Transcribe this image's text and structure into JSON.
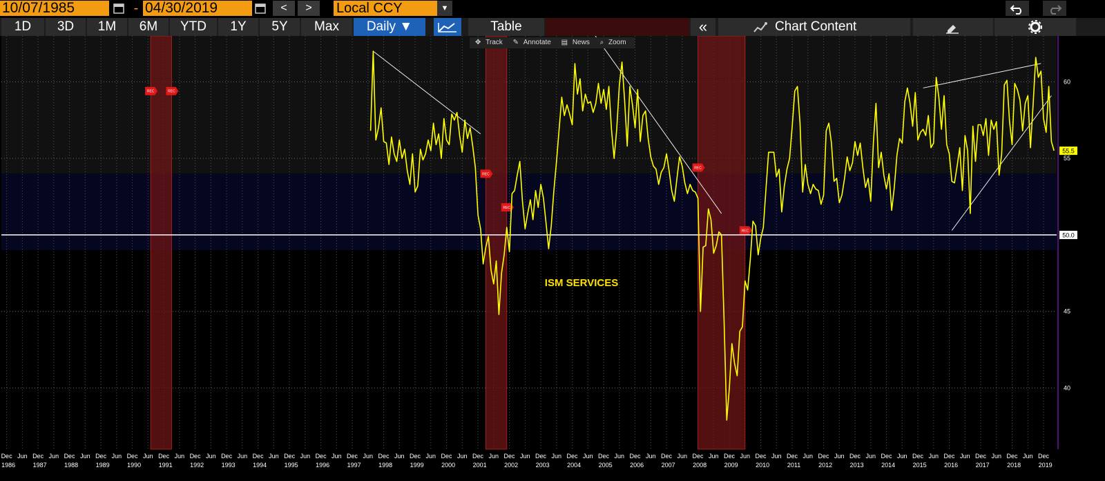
{
  "toolbar": {
    "start_date": "10/07/1985",
    "dash": "-",
    "end_date": "04/30/2019",
    "prev": "<",
    "next": ">",
    "currency": "Local CCY",
    "currency_arrow": "▼"
  },
  "tabs": {
    "periods": [
      "1D",
      "3D",
      "1M",
      "6M",
      "YTD",
      "1Y",
      "5Y",
      "Max"
    ],
    "frequency": "Daily ▼",
    "table": "Table",
    "collapse": "«",
    "chart_content": "Chart Content"
  },
  "chart_tools": {
    "track": "Track",
    "annotate": "Annotate",
    "news": "News",
    "zoom": "Zoom"
  },
  "colors": {
    "background": "#000000",
    "line": "#ffff00",
    "recession": "#8b1a1a",
    "accent": "#f39c12",
    "active_tab": "#1e62b8"
  },
  "chart_data": {
    "type": "line",
    "annotation": "ISM SERVICES",
    "ylim": [
      36,
      63
    ],
    "yticks": [
      "40",
      "45",
      "50",
      "55",
      "60"
    ],
    "reference_line": 50.0,
    "reference_label": "50.0",
    "last_value_label": "55.5",
    "recession_label": "REC",
    "x_range": [
      "1985-10",
      "2019-04"
    ],
    "x_year_labels": [
      "1986",
      "1987",
      "1988",
      "1989",
      "1990",
      "1991",
      "1992",
      "1993",
      "1994",
      "1995",
      "1996",
      "1997",
      "1998",
      "1999",
      "2000",
      "2001",
      "2002",
      "2003",
      "2004",
      "2005",
      "2006",
      "2007",
      "2008",
      "2009",
      "2010",
      "2011",
      "2012",
      "2013",
      "2014",
      "2015",
      "2016",
      "2017",
      "2018",
      "2019"
    ],
    "recessions": [
      {
        "start": "1990-07",
        "end": "1991-03"
      },
      {
        "start": "2001-03",
        "end": "2001-11"
      },
      {
        "start": "2007-12",
        "end": "2009-06"
      }
    ],
    "series": [
      {
        "values": [
          [
            "1997-07",
            56.8
          ],
          [
            "1997-08",
            62.0
          ],
          [
            "1997-09",
            56.2
          ],
          [
            "1997-10",
            57.0
          ],
          [
            "1997-11",
            58.3
          ],
          [
            "1997-12",
            56.1
          ],
          [
            "1998-01",
            56.0
          ],
          [
            "1998-02",
            54.6
          ],
          [
            "1998-03",
            56.4
          ],
          [
            "1998-04",
            55.3
          ],
          [
            "1998-05",
            54.8
          ],
          [
            "1998-06",
            56.2
          ],
          [
            "1998-07",
            55.0
          ],
          [
            "1998-08",
            55.6
          ],
          [
            "1998-09",
            54.2
          ],
          [
            "1998-10",
            53.3
          ],
          [
            "1998-11",
            55.3
          ],
          [
            "1998-12",
            52.8
          ],
          [
            "1999-01",
            53.2
          ],
          [
            "1999-02",
            55.6
          ],
          [
            "1999-03",
            54.9
          ],
          [
            "1999-04",
            55.3
          ],
          [
            "1999-05",
            56.2
          ],
          [
            "1999-06",
            55.5
          ],
          [
            "1999-07",
            57.3
          ],
          [
            "1999-08",
            55.9
          ],
          [
            "1999-09",
            56.6
          ],
          [
            "1999-10",
            55.0
          ],
          [
            "1999-11",
            57.6
          ],
          [
            "1999-12",
            56.2
          ],
          [
            "2000-01",
            55.9
          ],
          [
            "2000-02",
            57.9
          ],
          [
            "2000-03",
            57.5
          ],
          [
            "2000-04",
            58.0
          ],
          [
            "2000-05",
            56.5
          ],
          [
            "2000-06",
            55.4
          ],
          [
            "2000-07",
            57.5
          ],
          [
            "2000-08",
            56.3
          ],
          [
            "2000-09",
            57.0
          ],
          [
            "2000-10",
            55.8
          ],
          [
            "2000-11",
            54.4
          ],
          [
            "2000-12",
            51.3
          ],
          [
            "2001-01",
            50.4
          ],
          [
            "2001-02",
            48.1
          ],
          [
            "2001-03",
            49.2
          ],
          [
            "2001-04",
            49.9
          ],
          [
            "2001-05",
            47.7
          ],
          [
            "2001-06",
            46.8
          ],
          [
            "2001-07",
            48.3
          ],
          [
            "2001-08",
            44.8
          ],
          [
            "2001-09",
            47.5
          ],
          [
            "2001-10",
            48.7
          ],
          [
            "2001-11",
            50.5
          ],
          [
            "2001-12",
            48.9
          ],
          [
            "2002-01",
            52.7
          ],
          [
            "2002-02",
            52.9
          ],
          [
            "2002-03",
            53.9
          ],
          [
            "2002-04",
            54.8
          ],
          [
            "2002-05",
            52.2
          ],
          [
            "2002-06",
            50.4
          ],
          [
            "2002-07",
            51.4
          ],
          [
            "2002-08",
            52.3
          ],
          [
            "2002-09",
            51.0
          ],
          [
            "2002-10",
            52.9
          ],
          [
            "2002-11",
            51.8
          ],
          [
            "2002-12",
            53.3
          ],
          [
            "2003-01",
            52.4
          ],
          [
            "2003-02",
            50.8
          ],
          [
            "2003-03",
            49.1
          ],
          [
            "2003-04",
            50.6
          ],
          [
            "2003-05",
            52.9
          ],
          [
            "2003-06",
            54.8
          ],
          [
            "2003-07",
            56.9
          ],
          [
            "2003-08",
            59.0
          ],
          [
            "2003-09",
            57.8
          ],
          [
            "2003-10",
            58.5
          ],
          [
            "2003-11",
            57.9
          ],
          [
            "2003-12",
            57.2
          ],
          [
            "2004-01",
            61.2
          ],
          [
            "2004-02",
            59.2
          ],
          [
            "2004-03",
            60.2
          ],
          [
            "2004-04",
            58.1
          ],
          [
            "2004-05",
            59.2
          ],
          [
            "2004-06",
            58.6
          ],
          [
            "2004-07",
            58.7
          ],
          [
            "2004-08",
            58.0
          ],
          [
            "2004-09",
            58.6
          ],
          [
            "2004-10",
            59.9
          ],
          [
            "2004-11",
            58.6
          ],
          [
            "2004-12",
            59.5
          ],
          [
            "2005-01",
            58.2
          ],
          [
            "2005-02",
            59.7
          ],
          [
            "2005-03",
            56.9
          ],
          [
            "2005-04",
            55.0
          ],
          [
            "2005-05",
            56.9
          ],
          [
            "2005-06",
            59.8
          ],
          [
            "2005-07",
            61.3
          ],
          [
            "2005-08",
            58.8
          ],
          [
            "2005-09",
            55.8
          ],
          [
            "2005-10",
            59.7
          ],
          [
            "2005-11",
            58.5
          ],
          [
            "2005-12",
            57.0
          ],
          [
            "2006-01",
            59.5
          ],
          [
            "2006-02",
            56.1
          ],
          [
            "2006-03",
            57.8
          ],
          [
            "2006-04",
            58.1
          ],
          [
            "2006-05",
            56.3
          ],
          [
            "2006-06",
            55.1
          ],
          [
            "2006-07",
            54.5
          ],
          [
            "2006-08",
            54.3
          ],
          [
            "2006-09",
            53.3
          ],
          [
            "2006-10",
            54.1
          ],
          [
            "2006-11",
            54.4
          ],
          [
            "2006-12",
            55.3
          ],
          [
            "2007-01",
            54.2
          ],
          [
            "2007-02",
            52.9
          ],
          [
            "2007-03",
            52.2
          ],
          [
            "2007-04",
            53.7
          ],
          [
            "2007-05",
            55.1
          ],
          [
            "2007-06",
            54.5
          ],
          [
            "2007-07",
            53.4
          ],
          [
            "2007-08",
            52.7
          ],
          [
            "2007-09",
            53.3
          ],
          [
            "2007-10",
            52.9
          ],
          [
            "2007-11",
            52.8
          ],
          [
            "2007-12",
            52.4
          ],
          [
            "2008-01",
            45.0
          ],
          [
            "2008-02",
            49.2
          ],
          [
            "2008-03",
            49.3
          ],
          [
            "2008-04",
            51.7
          ],
          [
            "2008-05",
            51.0
          ],
          [
            "2008-06",
            48.8
          ],
          [
            "2008-07",
            49.3
          ],
          [
            "2008-08",
            50.2
          ],
          [
            "2008-09",
            50.0
          ],
          [
            "2008-10",
            44.3
          ],
          [
            "2008-11",
            37.9
          ],
          [
            "2008-12",
            40.0
          ],
          [
            "2009-01",
            42.9
          ],
          [
            "2009-02",
            41.6
          ],
          [
            "2009-03",
            40.8
          ],
          [
            "2009-04",
            43.7
          ],
          [
            "2009-05",
            44.0
          ],
          [
            "2009-06",
            47.0
          ],
          [
            "2009-07",
            46.4
          ],
          [
            "2009-08",
            48.4
          ],
          [
            "2009-09",
            50.9
          ],
          [
            "2009-10",
            50.6
          ],
          [
            "2009-11",
            48.7
          ],
          [
            "2009-12",
            49.8
          ],
          [
            "2010-01",
            50.5
          ],
          [
            "2010-02",
            53.0
          ],
          [
            "2010-03",
            55.4
          ],
          [
            "2010-04",
            55.4
          ],
          [
            "2010-05",
            55.4
          ],
          [
            "2010-06",
            53.8
          ],
          [
            "2010-07",
            54.3
          ],
          [
            "2010-08",
            51.5
          ],
          [
            "2010-09",
            53.2
          ],
          [
            "2010-10",
            54.3
          ],
          [
            "2010-11",
            55.0
          ],
          [
            "2010-12",
            57.1
          ],
          [
            "2011-01",
            59.4
          ],
          [
            "2011-02",
            59.7
          ],
          [
            "2011-03",
            57.3
          ],
          [
            "2011-04",
            52.8
          ],
          [
            "2011-05",
            54.6
          ],
          [
            "2011-06",
            53.3
          ],
          [
            "2011-07",
            52.7
          ],
          [
            "2011-08",
            53.3
          ],
          [
            "2011-09",
            53.0
          ],
          [
            "2011-10",
            52.9
          ],
          [
            "2011-11",
            52.0
          ],
          [
            "2011-12",
            52.6
          ],
          [
            "2012-01",
            56.8
          ],
          [
            "2012-02",
            57.3
          ],
          [
            "2012-03",
            56.0
          ],
          [
            "2012-04",
            53.5
          ],
          [
            "2012-05",
            53.7
          ],
          [
            "2012-06",
            52.1
          ],
          [
            "2012-07",
            52.6
          ],
          [
            "2012-08",
            53.7
          ],
          [
            "2012-09",
            55.1
          ],
          [
            "2012-10",
            54.2
          ],
          [
            "2012-11",
            54.7
          ],
          [
            "2012-12",
            56.1
          ],
          [
            "2013-01",
            55.2
          ],
          [
            "2013-02",
            56.0
          ],
          [
            "2013-03",
            54.4
          ],
          [
            "2013-04",
            53.1
          ],
          [
            "2013-05",
            53.7
          ],
          [
            "2013-06",
            52.2
          ],
          [
            "2013-07",
            56.0
          ],
          [
            "2013-08",
            58.6
          ],
          [
            "2013-09",
            54.4
          ],
          [
            "2013-10",
            55.4
          ],
          [
            "2013-11",
            53.9
          ],
          [
            "2013-12",
            53.0
          ],
          [
            "2014-01",
            54.0
          ],
          [
            "2014-02",
            51.6
          ],
          [
            "2014-03",
            53.1
          ],
          [
            "2014-04",
            55.2
          ],
          [
            "2014-05",
            56.3
          ],
          [
            "2014-06",
            56.0
          ],
          [
            "2014-07",
            58.7
          ],
          [
            "2014-08",
            59.6
          ],
          [
            "2014-09",
            58.6
          ],
          [
            "2014-10",
            57.1
          ],
          [
            "2014-11",
            59.3
          ],
          [
            "2014-12",
            56.2
          ],
          [
            "2015-01",
            56.7
          ],
          [
            "2015-02",
            56.9
          ],
          [
            "2015-03",
            56.5
          ],
          [
            "2015-04",
            57.8
          ],
          [
            "2015-05",
            55.7
          ],
          [
            "2015-06",
            56.0
          ],
          [
            "2015-07",
            60.3
          ],
          [
            "2015-08",
            59.0
          ],
          [
            "2015-09",
            56.9
          ],
          [
            "2015-10",
            59.1
          ],
          [
            "2015-11",
            55.9
          ],
          [
            "2015-12",
            55.3
          ],
          [
            "2016-01",
            53.5
          ],
          [
            "2016-02",
            53.4
          ],
          [
            "2016-03",
            54.5
          ],
          [
            "2016-04",
            55.7
          ],
          [
            "2016-05",
            52.9
          ],
          [
            "2016-06",
            56.5
          ],
          [
            "2016-07",
            55.5
          ],
          [
            "2016-08",
            51.4
          ],
          [
            "2016-09",
            57.1
          ],
          [
            "2016-10",
            54.8
          ],
          [
            "2016-11",
            57.2
          ],
          [
            "2016-12",
            57.2
          ],
          [
            "2017-01",
            56.5
          ],
          [
            "2017-02",
            57.6
          ],
          [
            "2017-03",
            55.2
          ],
          [
            "2017-04",
            57.5
          ],
          [
            "2017-05",
            56.9
          ],
          [
            "2017-06",
            57.4
          ],
          [
            "2017-07",
            53.9
          ],
          [
            "2017-08",
            55.3
          ],
          [
            "2017-09",
            59.8
          ],
          [
            "2017-10",
            60.1
          ],
          [
            "2017-11",
            57.4
          ],
          [
            "2017-12",
            55.9
          ],
          [
            "2018-01",
            59.9
          ],
          [
            "2018-02",
            59.5
          ],
          [
            "2018-03",
            58.8
          ],
          [
            "2018-04",
            56.8
          ],
          [
            "2018-05",
            58.6
          ],
          [
            "2018-06",
            59.1
          ],
          [
            "2018-07",
            55.7
          ],
          [
            "2018-08",
            58.5
          ],
          [
            "2018-09",
            61.6
          ],
          [
            "2018-10",
            60.3
          ],
          [
            "2018-11",
            60.7
          ],
          [
            "2018-12",
            57.6
          ],
          [
            "2019-01",
            56.7
          ],
          [
            "2019-02",
            59.7
          ],
          [
            "2019-03",
            56.1
          ],
          [
            "2019-04",
            55.5
          ]
        ]
      }
    ],
    "trendlines": [
      {
        "from": [
          "1997-08",
          62.0
        ],
        "to": [
          "2001-01",
          56.6
        ]
      },
      {
        "from": [
          "2004-08",
          63.2
        ],
        "to": [
          "2008-09",
          51.4
        ]
      },
      {
        "from": [
          "2015-02",
          59.6
        ],
        "to": [
          "2018-11",
          61.2
        ]
      },
      {
        "from": [
          "2016-01",
          50.3
        ],
        "to": [
          "2019-03",
          59.1
        ]
      }
    ]
  }
}
